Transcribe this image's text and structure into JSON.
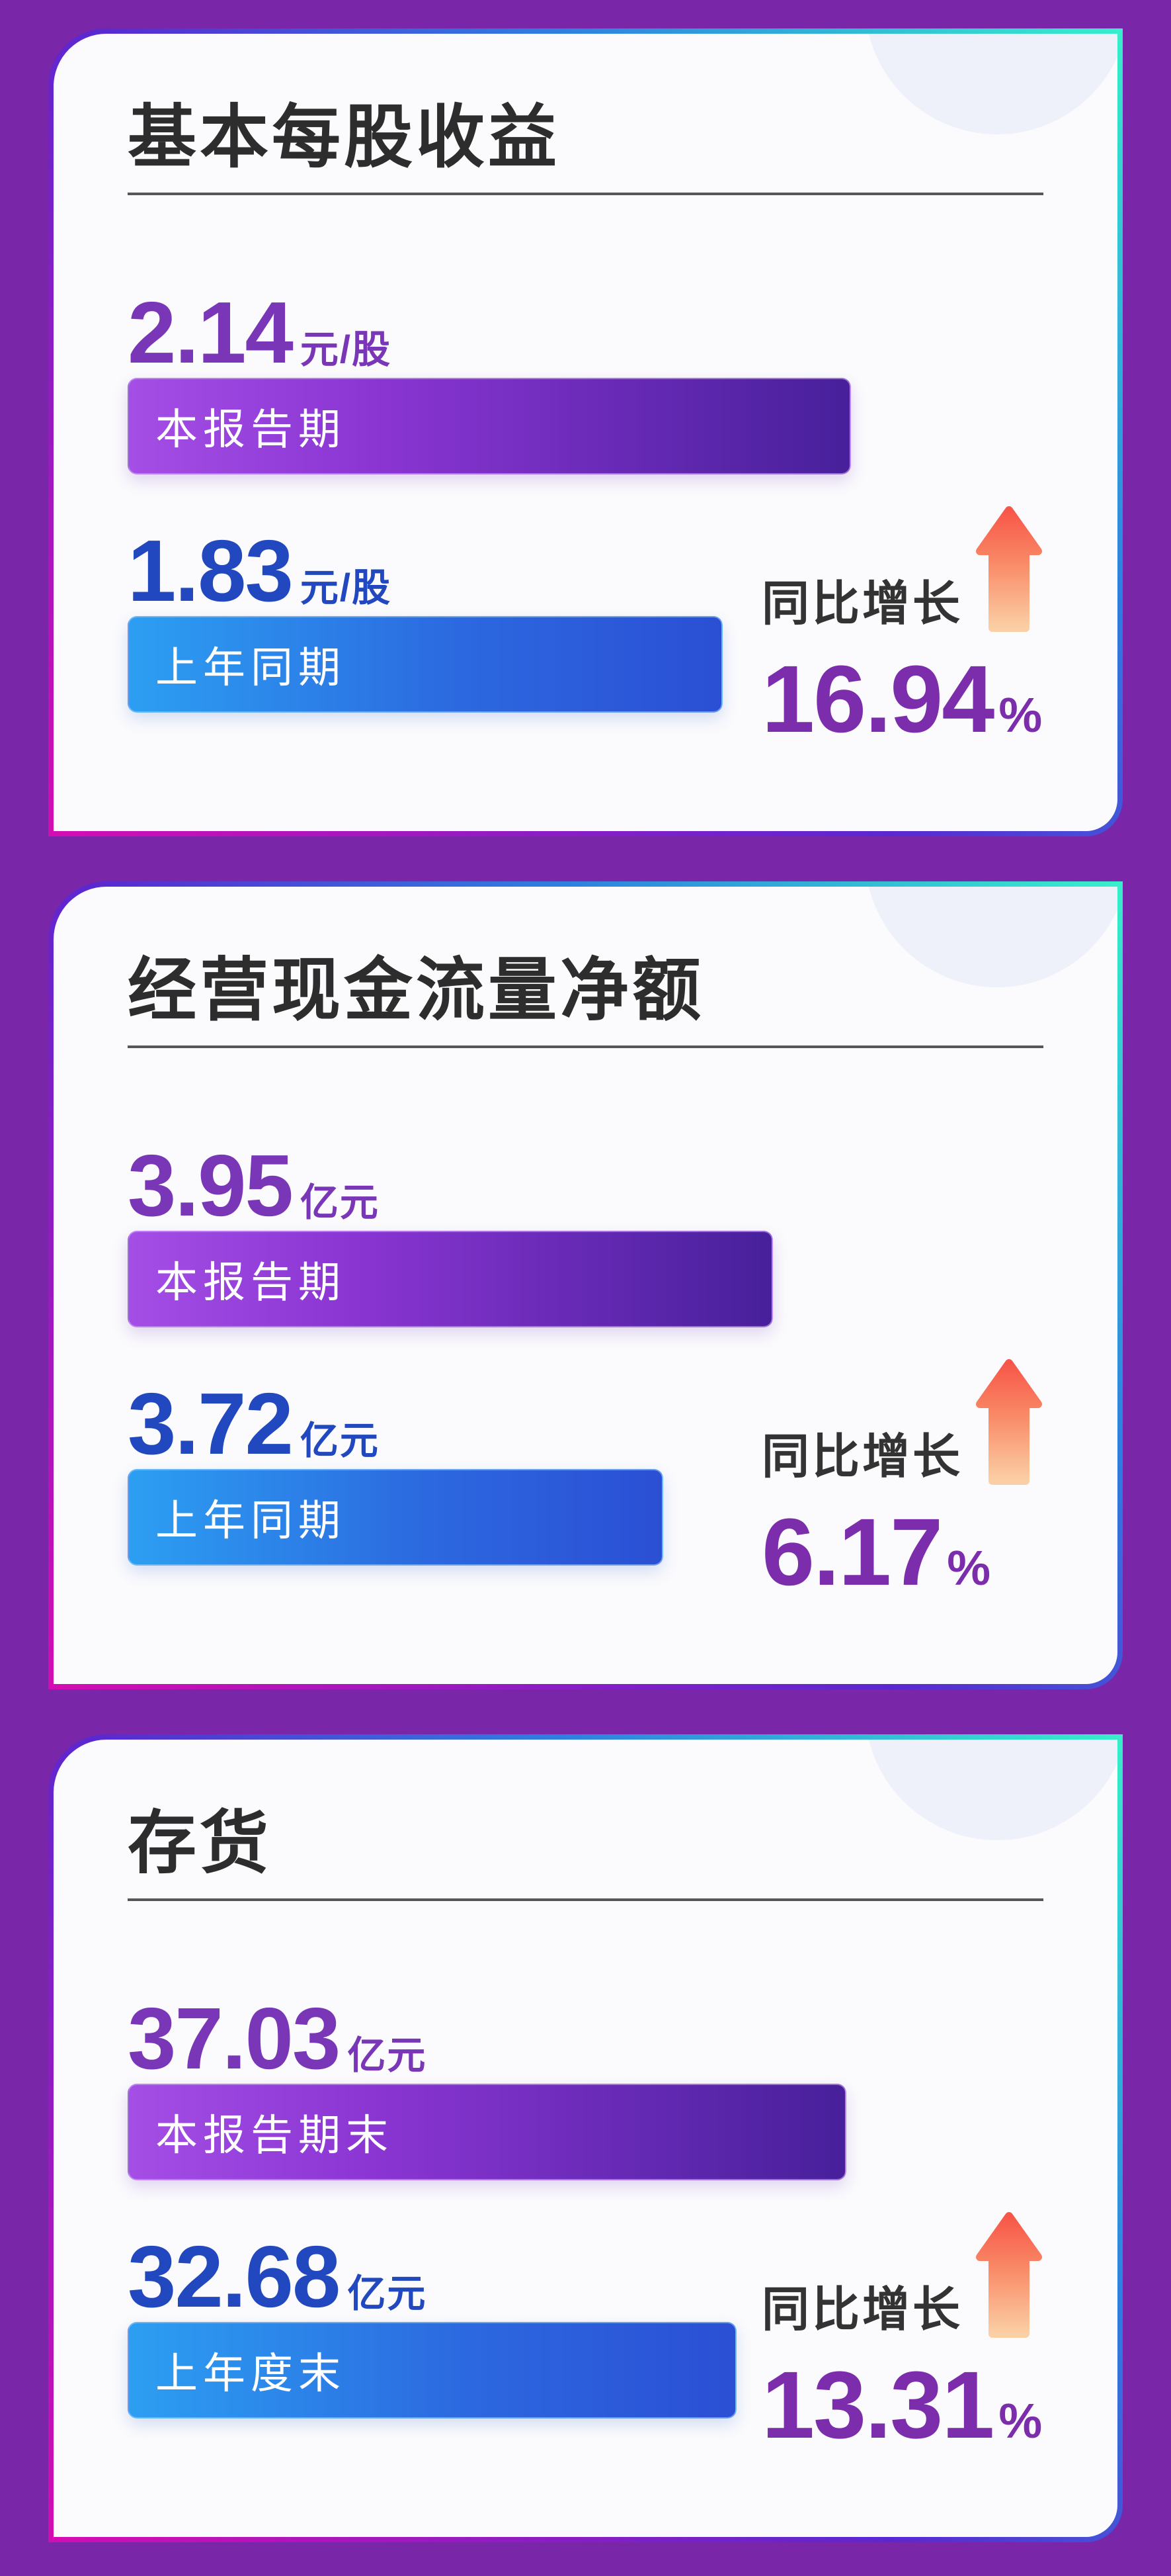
{
  "page": {
    "background": "#7927a8"
  },
  "colors": {
    "card_background": "#fbfbfd",
    "card_border_gradient": [
      "#d40db2",
      "#5a28d0",
      "#2e7fe0",
      "#38efcb"
    ],
    "bar_current_gradient": [
      "#a44ee6",
      "#47209b"
    ],
    "bar_previous_gradient": [
      "#2c9ff2",
      "#2b4fd4"
    ],
    "value_current_color": "#7936b6",
    "value_previous_color": "#2148be",
    "growth_value_color": "#7b2dab",
    "growth_label_color": "#333333",
    "title_color": "#2d2d2d",
    "divider_color": "#565656",
    "arrow_gradient": [
      "#f75648",
      "#fbcfa5"
    ],
    "ring_color": "#eef1fa"
  },
  "cards": [
    {
      "title": "基本每股收益",
      "current": {
        "value": "2.14",
        "unit": "元/股",
        "label": "本报告期",
        "bar_pct": 79
      },
      "previous": {
        "value": "1.83",
        "unit": "元/股",
        "label": "上年同期",
        "bar_pct": 65
      },
      "growth": {
        "label": "同比增长",
        "value": "16.94",
        "suffix": "%"
      }
    },
    {
      "title": "经营现金流量净额",
      "current": {
        "value": "3.95",
        "unit": "亿元",
        "label": "本报告期",
        "bar_pct": 70.5
      },
      "previous": {
        "value": "3.72",
        "unit": "亿元",
        "label": "上年同期",
        "bar_pct": 58.5
      },
      "growth": {
        "label": "同比增长",
        "value": "6.17",
        "suffix": "%"
      }
    },
    {
      "title": "存货",
      "current": {
        "value": "37.03",
        "unit": "亿元",
        "label": "本报告期末",
        "bar_pct": 78.5
      },
      "previous": {
        "value": "32.68",
        "unit": "亿元",
        "label": "上年度末",
        "bar_pct": 66.5
      },
      "growth": {
        "label": "同比增长",
        "value": "13.31",
        "suffix": "%"
      }
    }
  ],
  "chart_data": [
    {
      "type": "bar",
      "title": "基本每股收益",
      "categories": [
        "本报告期",
        "上年同期"
      ],
      "values": [
        2.14,
        1.83
      ],
      "unit": "元/股",
      "growth_label": "同比增长",
      "growth_pct": 16.94,
      "orientation": "horizontal",
      "grid": false
    },
    {
      "type": "bar",
      "title": "经营现金流量净额",
      "categories": [
        "本报告期",
        "上年同期"
      ],
      "values": [
        3.95,
        3.72
      ],
      "unit": "亿元",
      "growth_label": "同比增长",
      "growth_pct": 6.17,
      "orientation": "horizontal",
      "grid": false
    },
    {
      "type": "bar",
      "title": "存货",
      "categories": [
        "本报告期末",
        "上年度末"
      ],
      "values": [
        37.03,
        32.68
      ],
      "unit": "亿元",
      "growth_label": "同比增长",
      "growth_pct": 13.31,
      "orientation": "horizontal",
      "grid": false
    }
  ]
}
